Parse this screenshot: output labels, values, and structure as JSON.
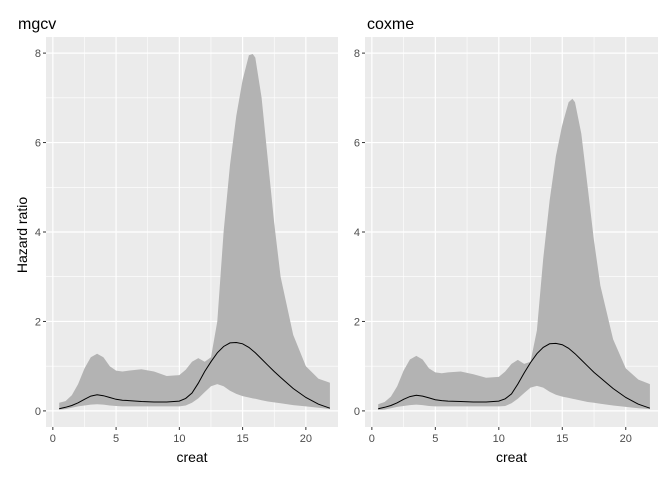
{
  "ylabel": "Hazard ratio",
  "chart_data": [
    {
      "type": "area",
      "title": "mgcv",
      "xlabel": "creat",
      "ylabel": "Hazard ratio",
      "xlim": [
        0,
        22
      ],
      "ylim": [
        0,
        8
      ],
      "x_ticks": [
        0,
        5,
        10,
        15,
        20
      ],
      "y_ticks": [
        0,
        2,
        4,
        6,
        8
      ],
      "grid": true,
      "series": [
        {
          "role": "band",
          "x": [
            0.5,
            1,
            1.5,
            2,
            2.5,
            3,
            3.5,
            4,
            4.5,
            5,
            5.5,
            6,
            7,
            8,
            9,
            10,
            10.5,
            11,
            11.5,
            12,
            12.5,
            13,
            13.5,
            14,
            14.5,
            15,
            15.5,
            15.8,
            16,
            16.5,
            17,
            17.5,
            18,
            19,
            20,
            21,
            21.9
          ],
          "upper": [
            0.18,
            0.22,
            0.35,
            0.6,
            0.95,
            1.2,
            1.28,
            1.2,
            1.0,
            0.9,
            0.88,
            0.9,
            0.93,
            0.88,
            0.78,
            0.8,
            0.92,
            1.1,
            1.18,
            1.1,
            1.2,
            2.0,
            4.0,
            5.5,
            6.6,
            7.4,
            7.95,
            7.98,
            7.9,
            7.0,
            5.6,
            4.2,
            3.0,
            1.7,
            1.0,
            0.72,
            0.63
          ],
          "lower": [
            0.03,
            0.04,
            0.07,
            0.1,
            0.12,
            0.14,
            0.15,
            0.14,
            0.12,
            0.11,
            0.1,
            0.1,
            0.1,
            0.1,
            0.1,
            0.1,
            0.12,
            0.18,
            0.28,
            0.42,
            0.55,
            0.6,
            0.55,
            0.45,
            0.38,
            0.33,
            0.3,
            0.28,
            0.27,
            0.24,
            0.21,
            0.19,
            0.17,
            0.13,
            0.1,
            0.07,
            0.04
          ]
        },
        {
          "role": "fit",
          "x": [
            0.5,
            1,
            1.5,
            2,
            2.5,
            3,
            3.5,
            4,
            4.5,
            5,
            5.5,
            6,
            7,
            8,
            9,
            10,
            10.5,
            11,
            11.5,
            12,
            12.5,
            13,
            13.5,
            14,
            14.5,
            15,
            15.5,
            16,
            16.5,
            17,
            17.5,
            18,
            19,
            20,
            21,
            21.9
          ],
          "y": [
            0.05,
            0.08,
            0.12,
            0.18,
            0.26,
            0.33,
            0.36,
            0.34,
            0.3,
            0.26,
            0.24,
            0.23,
            0.21,
            0.2,
            0.2,
            0.22,
            0.28,
            0.4,
            0.62,
            0.88,
            1.1,
            1.3,
            1.44,
            1.52,
            1.53,
            1.5,
            1.42,
            1.3,
            1.16,
            1.02,
            0.88,
            0.75,
            0.5,
            0.3,
            0.15,
            0.06
          ]
        }
      ]
    },
    {
      "type": "area",
      "title": "coxme",
      "xlabel": "creat",
      "ylabel": "",
      "xlim": [
        0,
        22
      ],
      "ylim": [
        0,
        8
      ],
      "x_ticks": [
        0,
        5,
        10,
        15,
        20
      ],
      "y_ticks": [
        0,
        2,
        4,
        6,
        8
      ],
      "grid": true,
      "series": [
        {
          "role": "band",
          "x": [
            0.5,
            1,
            1.5,
            2,
            2.5,
            3,
            3.5,
            4,
            4.5,
            5,
            5.5,
            6,
            7,
            8,
            9,
            10,
            10.5,
            11,
            11.5,
            12,
            12.5,
            13,
            13.5,
            14,
            14.5,
            15,
            15.5,
            15.8,
            16,
            16.5,
            17,
            17.5,
            18,
            19,
            20,
            21,
            21.9
          ],
          "upper": [
            0.15,
            0.2,
            0.32,
            0.55,
            0.9,
            1.15,
            1.23,
            1.15,
            0.95,
            0.86,
            0.84,
            0.86,
            0.88,
            0.82,
            0.74,
            0.76,
            0.88,
            1.05,
            1.14,
            1.05,
            1.1,
            1.8,
            3.4,
            4.7,
            5.7,
            6.4,
            6.9,
            6.98,
            6.9,
            6.2,
            5.0,
            3.8,
            2.8,
            1.6,
            0.95,
            0.7,
            0.6
          ],
          "lower": [
            0.02,
            0.03,
            0.06,
            0.09,
            0.11,
            0.13,
            0.14,
            0.13,
            0.11,
            0.1,
            0.1,
            0.1,
            0.1,
            0.1,
            0.1,
            0.1,
            0.11,
            0.17,
            0.27,
            0.4,
            0.52,
            0.56,
            0.52,
            0.43,
            0.36,
            0.32,
            0.29,
            0.27,
            0.26,
            0.23,
            0.2,
            0.18,
            0.16,
            0.12,
            0.09,
            0.06,
            0.04
          ]
        },
        {
          "role": "fit",
          "x": [
            0.5,
            1,
            1.5,
            2,
            2.5,
            3,
            3.5,
            4,
            4.5,
            5,
            5.5,
            6,
            7,
            8,
            9,
            10,
            10.5,
            11,
            11.5,
            12,
            12.5,
            13,
            13.5,
            14,
            14.5,
            15,
            15.5,
            16,
            16.5,
            17,
            17.5,
            18,
            19,
            20,
            21,
            21.9
          ],
          "y": [
            0.05,
            0.08,
            0.12,
            0.18,
            0.26,
            0.32,
            0.35,
            0.33,
            0.29,
            0.25,
            0.23,
            0.22,
            0.21,
            0.2,
            0.2,
            0.22,
            0.27,
            0.38,
            0.6,
            0.85,
            1.08,
            1.28,
            1.42,
            1.5,
            1.51,
            1.48,
            1.4,
            1.28,
            1.14,
            1.0,
            0.86,
            0.74,
            0.5,
            0.3,
            0.15,
            0.06
          ]
        }
      ]
    }
  ]
}
